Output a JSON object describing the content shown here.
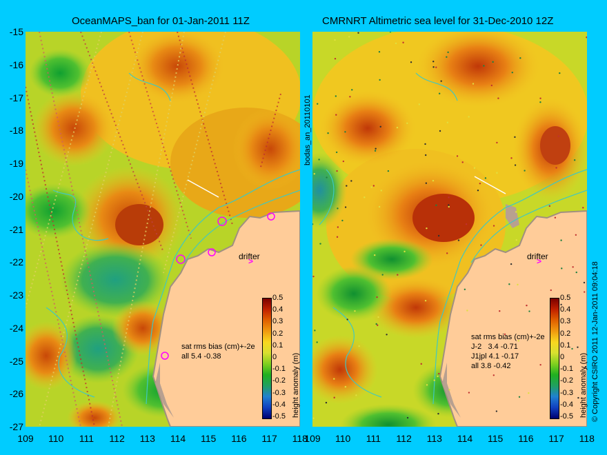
{
  "left_title": "OceanMAPS_ban for 01-Jan-2011 11Z",
  "right_title": "CMRNRT Altimetric sea level  for 31-Dec-2010 12Z",
  "y_ticks": [
    "-15",
    "-16",
    "-17",
    "-18",
    "-19",
    "-20",
    "-21",
    "-22",
    "-23",
    "-24",
    "-25",
    "-26",
    "-27"
  ],
  "x_ticks": [
    "109",
    "110",
    "111",
    "112",
    "113",
    "114",
    "115",
    "116",
    "117",
    "118"
  ],
  "x_ticks_right": [
    "109",
    "110",
    "111",
    "112",
    "113",
    "114",
    "115",
    "116",
    "117",
    "118"
  ],
  "side_label": "bodas_an_20110101",
  "copyright": "© Copyright CSIRO 2011   12-Jan-2011 09:04:18",
  "left_annotation": {
    "line1": "sat rms bias (cm)+-2e",
    "line2": "all 5.4 -0.38"
  },
  "right_annotation": {
    "line1": "sat rms bias (cm)+-2e",
    "line2": "J-2   3.4 -0.71",
    "line3": "J1jpl 4.1 -0.17",
    "line4": "all 3.8 -0.42"
  },
  "drifter_label": "drifter",
  "drifter_symbol": ">",
  "colorbar": {
    "title": "height anomaly (m)",
    "ticks": [
      "0.5",
      "0.4",
      "0.3",
      "0.2",
      "0.1",
      "0",
      "-0.1",
      "-0.2",
      "-0.3",
      "-0.4",
      "-0.5"
    ]
  },
  "colors": {
    "background": "#00ccff",
    "land": "#ffcc99",
    "coast": "#b8a090",
    "drifter": "#ff00ff"
  }
}
